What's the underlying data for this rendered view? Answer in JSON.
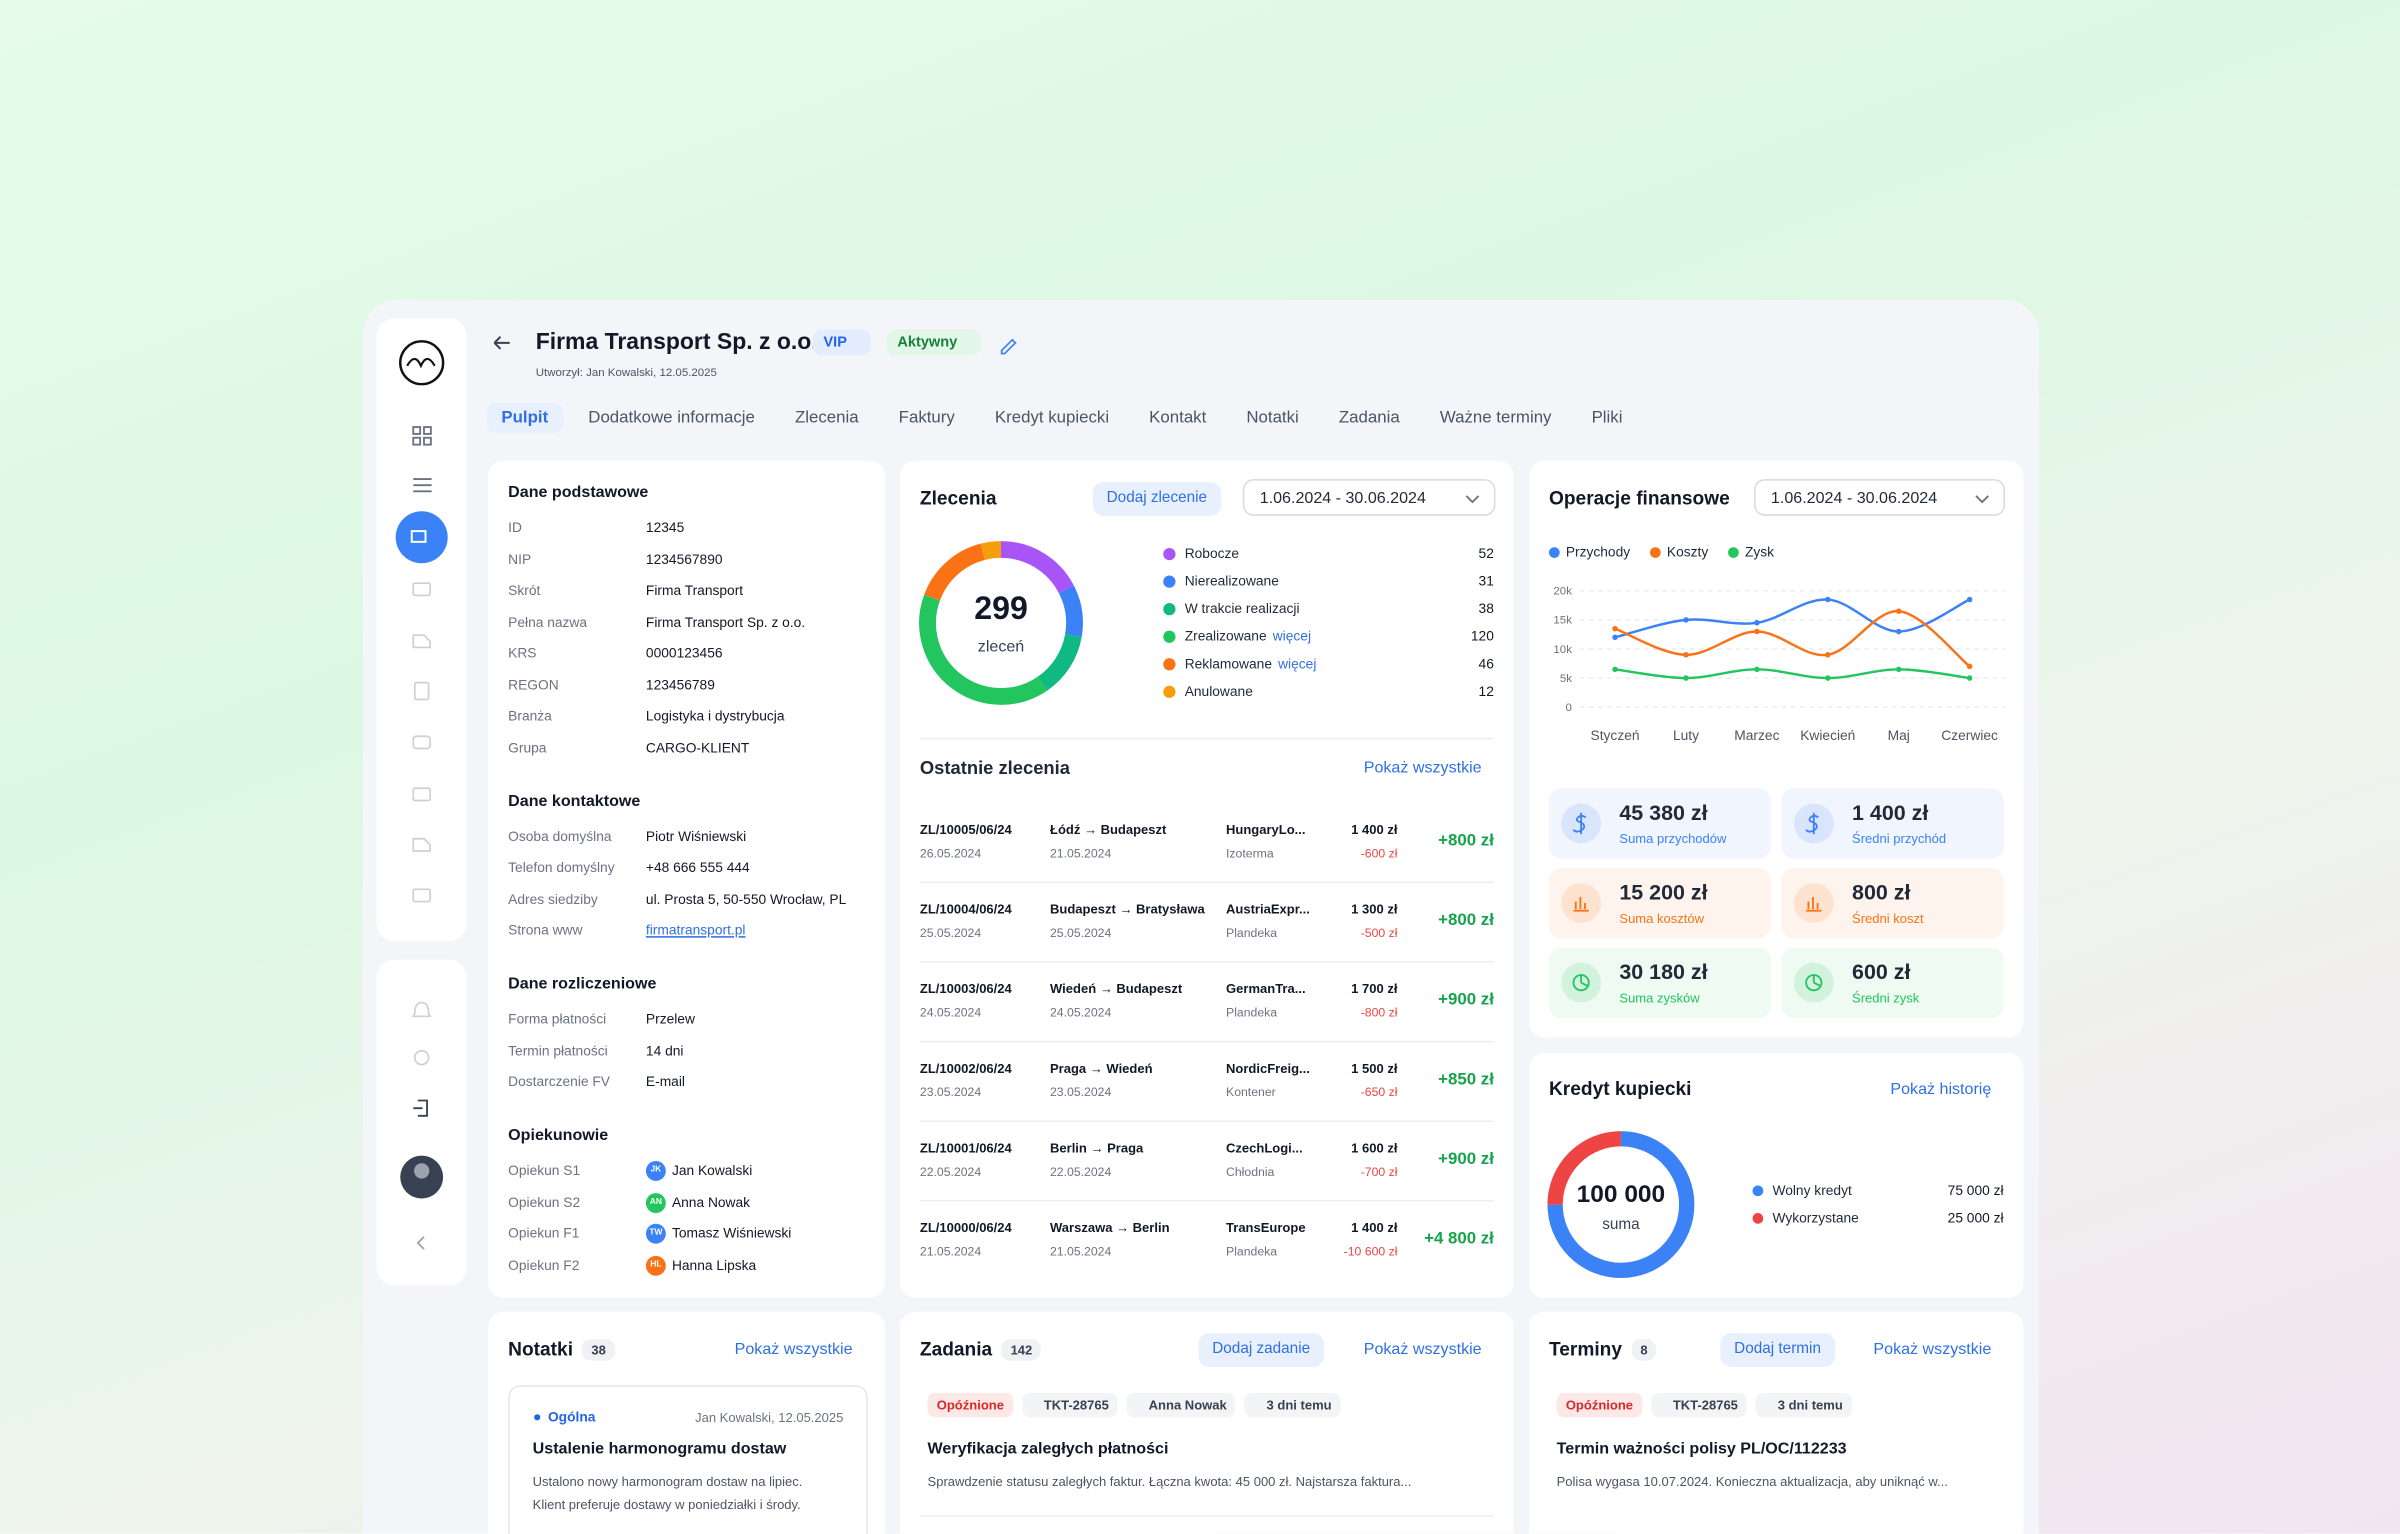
{
  "header": {
    "title": "Firma Transport Sp. z o.o.",
    "badges": [
      "VIP",
      "Aktywny"
    ],
    "created": "Utworzył: Jan Kowalski, 12.05.2025"
  },
  "tabs": {
    "items": [
      "Pulpit",
      "Dodatkowe informacje",
      "Zlecenia",
      "Faktury",
      "Kredyt kupiecki",
      "Kontakt",
      "Notatki",
      "Zadania",
      "Ważne terminy",
      "Pliki"
    ],
    "active": 0
  },
  "details": {
    "sections": [
      {
        "title": "Dane podstawowe",
        "rows": [
          {
            "label": "ID",
            "value": "12345"
          },
          {
            "label": "NIP",
            "value": "1234567890"
          },
          {
            "label": "Skrót",
            "value": "Firma Transport"
          },
          {
            "label": "Pełna nazwa",
            "value": "Firma Transport Sp. z o.o."
          },
          {
            "label": "KRS",
            "value": "0000123456"
          },
          {
            "label": "REGON",
            "value": "123456789"
          },
          {
            "label": "Branża",
            "value": "Logistyka i dystrybucja"
          },
          {
            "label": "Grupa",
            "value": "CARGO-KLIENT"
          }
        ]
      },
      {
        "title": "Dane kontaktowe",
        "rows": [
          {
            "label": "Osoba domyślna",
            "value": "Piotr Wiśniewski"
          },
          {
            "label": "Telefon domyślny",
            "value": "+48 666 555 444"
          },
          {
            "label": "Adres siedziby",
            "value": "ul. Prosta 5, 50-550 Wrocław, PL"
          },
          {
            "label": "Strona www",
            "value": "firmatransport.pl",
            "type": "link"
          }
        ]
      },
      {
        "title": "Dane rozliczeniowe",
        "rows": [
          {
            "label": "Forma płatności",
            "value": "Przelew"
          },
          {
            "label": "Termin płatności",
            "value": "14 dni"
          },
          {
            "label": "Dostarczenie FV",
            "value": "E-mail"
          }
        ]
      },
      {
        "title": "Opiekunowie",
        "rows": [
          {
            "label": "Opiekun S1",
            "value": "Jan Kowalski",
            "initials": "JK",
            "color": "#3b82f6"
          },
          {
            "label": "Opiekun S2",
            "value": "Anna Nowak",
            "initials": "AN",
            "color": "#22c55e"
          },
          {
            "label": "Opiekun F1",
            "value": "Tomasz Wiśniewski",
            "initials": "TW",
            "color": "#3b82f6"
          },
          {
            "label": "Opiekun F2",
            "value": "Hanna Lipska",
            "initials": "HL",
            "color": "#f97316"
          }
        ]
      }
    ]
  },
  "orders": {
    "title": "Zlecenia",
    "button": "Dodaj zlecenie",
    "range": "1.06.2024 - 30.06.2024",
    "chart": {
      "type": "donut",
      "total": 299,
      "caption": "zleceń",
      "categories": [
        "Robocze",
        "Nierealizowane",
        "W trakcie realizacji",
        "Zrealizowane",
        "Reklamowane",
        "Anulowane"
      ],
      "values": [
        52,
        31,
        38,
        120,
        46,
        12
      ],
      "colors": [
        "#a855f7",
        "#3b82f6",
        "#10b981",
        "#22c55e",
        "#f97316",
        "#f59e0b"
      ],
      "links": [
        null,
        null,
        null,
        "więcej",
        "więcej",
        null
      ]
    }
  },
  "recent": {
    "title": "Ostatnie zlecenia",
    "link": "Pokaż wszystkie",
    "rows": [
      {
        "id": "ZL/10005/06/24",
        "date": "26.05.2024",
        "route": "Łódź → Budapeszt",
        "route_date": "21.05.2024",
        "carrier": "HungaryLo...",
        "vehicle": "Izoterma",
        "price": "1 400 zł",
        "cost": "-600 zł",
        "profit": "+800 zł"
      },
      {
        "id": "ZL/10004/06/24",
        "date": "25.05.2024",
        "route": "Budapeszt → Bratysława",
        "route_date": "25.05.2024",
        "carrier": "AustriaExpr...",
        "vehicle": "Plandeka",
        "price": "1 300 zł",
        "cost": "-500 zł",
        "profit": "+800 zł"
      },
      {
        "id": "ZL/10003/06/24",
        "date": "24.05.2024",
        "route": "Wiedeń → Budapeszt",
        "route_date": "24.05.2024",
        "carrier": "GermanTra...",
        "vehicle": "Plandeka",
        "price": "1 700 zł",
        "cost": "-800 zł",
        "profit": "+900 zł"
      },
      {
        "id": "ZL/10002/06/24",
        "date": "23.05.2024",
        "route": "Praga → Wiedeń",
        "route_date": "23.05.2024",
        "carrier": "NordicFreig...",
        "vehicle": "Kontener",
        "price": "1 500 zł",
        "cost": "-650 zł",
        "profit": "+850 zł"
      },
      {
        "id": "ZL/10001/06/24",
        "date": "22.05.2024",
        "route": "Berlin → Praga",
        "route_date": "22.05.2024",
        "carrier": "CzechLogi...",
        "vehicle": "Chłodnia",
        "price": "1 600 zł",
        "cost": "-700 zł",
        "profit": "+900 zł"
      },
      {
        "id": "ZL/10000/06/24",
        "date": "21.05.2024",
        "route": "Warszawa → Berlin",
        "route_date": "21.05.2024",
        "carrier": "TransEurope",
        "vehicle": "Plandeka",
        "price": "1 400 zł",
        "cost": "-10 600 zł",
        "profit": "+4 800 zł"
      }
    ]
  },
  "finance": {
    "title": "Operacje finansowe",
    "range": "1.06.2024 - 30.06.2024",
    "chart": {
      "type": "line",
      "categories": [
        "Styczeń",
        "Luty",
        "Marzec",
        "Kwiecień",
        "Maj",
        "Czerwiec"
      ],
      "series": [
        {
          "name": "Przychody",
          "color": "#3b82f6",
          "values": [
            12000,
            15000,
            14500,
            18500,
            13000,
            18500
          ]
        },
        {
          "name": "Koszty",
          "color": "#f97316",
          "values": [
            13500,
            9000,
            13000,
            9000,
            16500,
            7000
          ]
        },
        {
          "name": "Zysk",
          "color": "#22c55e",
          "values": [
            6500,
            5000,
            6500,
            5000,
            6500,
            5000
          ]
        }
      ],
      "ylim": [
        0,
        20000
      ],
      "yticks": [
        0,
        {
          "value": 5000,
          "label": "5k"
        },
        {
          "value": 10000,
          "label": "10k"
        },
        {
          "value": 15000,
          "label": "15k"
        },
        {
          "value": 20000,
          "label": "20k"
        }
      ],
      "grid": true
    },
    "stats": [
      {
        "value": "45 380 zł",
        "label": "Suma przychodów",
        "color": "#3b82f6"
      },
      {
        "value": "1 400 zł",
        "label": "Średni przychód",
        "color": "#3b82f6"
      },
      {
        "value": "15 200 zł",
        "label": "Suma kosztów",
        "color": "#f97316"
      },
      {
        "value": "800 zł",
        "label": "Średni koszt",
        "color": "#f97316"
      },
      {
        "value": "30 180 zł",
        "label": "Suma zysków",
        "color": "#22c55e"
      },
      {
        "value": "600 zł",
        "label": "Średni zysk",
        "color": "#22c55e"
      }
    ]
  },
  "credit": {
    "title": "Kredyt kupiecki",
    "link": "Pokaż historię",
    "chart": {
      "type": "donut",
      "total": {
        "value": 100000,
        "label": "100 000"
      },
      "caption": "suma",
      "categories": [
        "Wolny kredyt",
        "Wykorzystane"
      ],
      "values": [
        75000,
        25000
      ],
      "value_labels": [
        "75 000 zł",
        "25 000 zł"
      ],
      "colors": [
        "#3b82f6",
        "#ef4444"
      ]
    }
  },
  "notes": {
    "title": "Notatki",
    "count": 38,
    "link": "Pokaż wszystkie",
    "items": [
      {
        "category": "Ogólna",
        "meta": "Jan Kowalski, 12.05.2025",
        "title": "Ustalenie harmonogramu dostaw",
        "lines": [
          "Ustalono nowy harmonogram dostaw na lipiec.",
          "Klient preferuje dostawy w poniedziałki i środy."
        ]
      }
    ]
  },
  "tasks": {
    "title": "Zadania",
    "count": 142,
    "button": "Dodaj zadanie",
    "link": "Pokaż wszystkie",
    "items": [
      {
        "status": "Opóźnione",
        "tag": "TKT-28765",
        "person": "Anna Nowak",
        "time": "3 dni temu",
        "title": "Weryfikacja zaległych płatności",
        "desc": "Sprawdzenie statusu zaległych faktur. Łączna kwota: 45 000 zł. Najstarsza faktura..."
      }
    ]
  },
  "deadlines": {
    "title": "Terminy",
    "count": 8,
    "button": "Dodaj termin",
    "link": "Pokaż wszystkie",
    "items": [
      {
        "status": "Opóźnione",
        "tag": "TKT-28765",
        "time": "3 dni temu",
        "title": "Termin ważności polisy PL/OC/112233",
        "desc": "Polisa wygasa 10.07.2024. Konieczna aktualizacja, aby uniknąć w..."
      }
    ]
  }
}
